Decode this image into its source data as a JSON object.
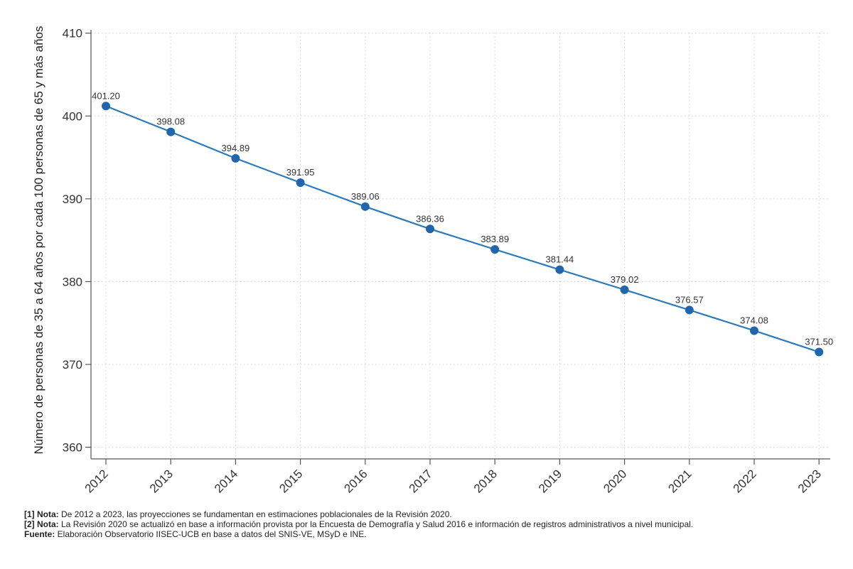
{
  "chart_data": {
    "type": "line",
    "title": "",
    "xlabel": "",
    "ylabel": "Número de personas de 35 a 64 años por cada 100 personas de 65 y más años",
    "categories": [
      "2012",
      "2013",
      "2014",
      "2015",
      "2016",
      "2017",
      "2018",
      "2019",
      "2020",
      "2021",
      "2022",
      "2023"
    ],
    "series": [
      {
        "values": [
          401.2,
          398.08,
          394.89,
          391.95,
          389.06,
          386.36,
          383.89,
          381.44,
          379.02,
          376.57,
          374.08,
          371.5
        ],
        "labels": [
          "401.20",
          "398.08",
          "394.89",
          "391.95",
          "389.06",
          "386.36",
          "383.89",
          "381.44",
          "379.02",
          "376.57",
          "374.08",
          "371.50"
        ]
      }
    ],
    "ylim": [
      360,
      410
    ],
    "yticks": [
      {
        "value": 360,
        "label": "360"
      },
      {
        "value": 370,
        "label": "370"
      },
      {
        "value": 380,
        "label": "380"
      },
      {
        "value": 390,
        "label": "390"
      },
      {
        "value": 400,
        "label": "400"
      },
      {
        "value": 410,
        "label": "410"
      }
    ],
    "grid": true,
    "legend": "none",
    "series_color": "#2b7bba",
    "point_color": "#2166ac"
  },
  "notes": [
    {
      "tag": "[1] Nota:",
      "text": " De 2012 a 2023, las proyecciones se fundamentan en estimaciones poblacionales de la Revisión 2020."
    },
    {
      "tag": "[2] Nota:",
      "text": " La Revisión 2020 se actualizó en base a información provista por la Encuesta de Demografía y Salud 2016 e información de registros administrativos a nivel municipal."
    },
    {
      "tag": "Fuente:",
      "text": " Elaboración Observatorio IISEC-UCB en base a datos del SNIS-VE, MSyD e INE."
    }
  ]
}
